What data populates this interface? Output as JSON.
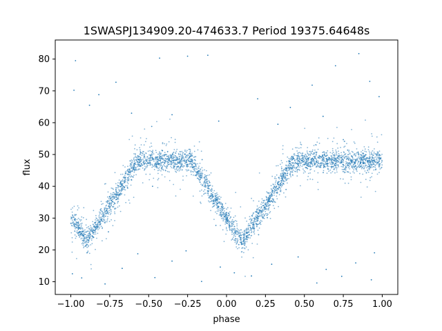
{
  "chart_data": {
    "type": "scatter",
    "title": "1SWASPJ134909.20-474633.7 Period 19375.64648s",
    "xlabel": "phase",
    "ylabel": "flux",
    "xlim": [
      -1.1,
      1.1
    ],
    "ylim": [
      6,
      86
    ],
    "grid": false,
    "legend": "none",
    "marker_color": "#1f77b4",
    "x_ticks": [
      -1.0,
      -0.75,
      -0.5,
      -0.25,
      0.0,
      0.25,
      0.5,
      0.75,
      1.0
    ],
    "x_tick_labels": [
      "−1.00",
      "−0.75",
      "−0.50",
      "−0.25",
      "0.00",
      "0.25",
      "0.50",
      "0.75",
      "1.00"
    ],
    "y_ticks": [
      10,
      20,
      30,
      40,
      50,
      60,
      70,
      80
    ],
    "y_tick_labels": [
      "10",
      "20",
      "30",
      "40",
      "50",
      "60",
      "70",
      "80"
    ],
    "baseline_flux": 48,
    "eclipse_minima": [
      {
        "phase": -0.9,
        "flux": 22.5
      },
      {
        "phase": 0.1,
        "flux": 22.5
      }
    ],
    "eclipse_ingress_phase_span": 0.33,
    "scatter_points": [
      [
        -0.97,
        79.5
      ],
      [
        -0.98,
        70.2
      ],
      [
        -0.88,
        65.5
      ],
      [
        -0.82,
        68.8
      ],
      [
        -0.71,
        72.7
      ],
      [
        -0.43,
        80.3
      ],
      [
        -0.25,
        80.9
      ],
      [
        -0.12,
        81.2
      ],
      [
        -0.61,
        63.0
      ],
      [
        -0.35,
        62.5
      ],
      [
        0.2,
        67.5
      ],
      [
        0.41,
        64.8
      ],
      [
        0.55,
        71.8
      ],
      [
        0.7,
        77.9
      ],
      [
        0.85,
        81.7
      ],
      [
        0.92,
        73.0
      ],
      [
        0.98,
        68.2
      ],
      [
        0.62,
        62.0
      ],
      [
        -0.05,
        60.5
      ],
      [
        0.33,
        59.5
      ],
      [
        -0.99,
        12.5
      ],
      [
        -0.93,
        11.2
      ],
      [
        -0.78,
        9.3
      ],
      [
        -0.46,
        11.3
      ],
      [
        -0.16,
        10.1
      ],
      [
        0.05,
        12.8
      ],
      [
        0.16,
        11.8
      ],
      [
        0.58,
        9.6
      ],
      [
        0.74,
        11.7
      ],
      [
        0.93,
        10.6
      ],
      [
        0.29,
        15.5
      ],
      [
        -0.67,
        14.2
      ],
      [
        -0.35,
        16.5
      ],
      [
        0.46,
        17.8
      ],
      [
        0.83,
        15.9
      ],
      [
        -0.57,
        18.8
      ],
      [
        -0.26,
        19.7
      ],
      [
        0.64,
        13.9
      ],
      [
        0.95,
        19.1
      ],
      [
        -0.04,
        14.6
      ]
    ]
  }
}
